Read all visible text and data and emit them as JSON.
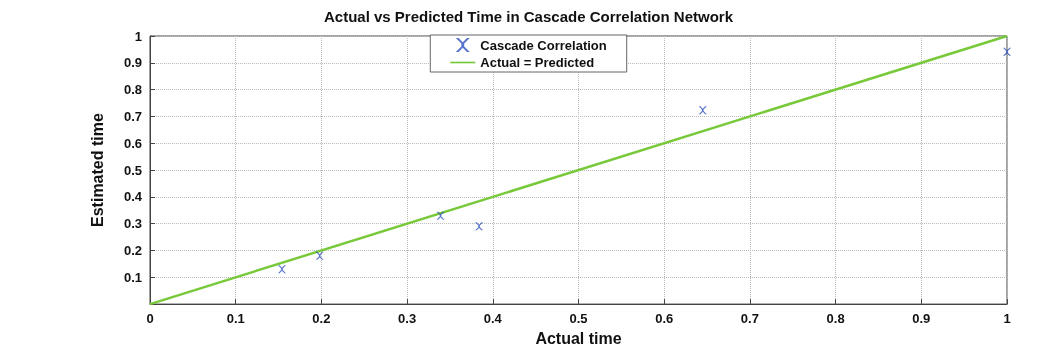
{
  "chart_data": {
    "type": "scatter",
    "title": "Actual vs Predicted Time in Cascade Correlation Network",
    "xlabel": "Actual time",
    "ylabel": "Estimated time",
    "xlim": [
      0,
      1
    ],
    "ylim": [
      0,
      1
    ],
    "xticks": [
      0,
      0.1,
      0.2,
      0.3,
      0.4,
      0.5,
      0.6,
      0.7,
      0.8,
      0.9,
      1
    ],
    "yticks": [
      {
        "value": 0,
        "label": null
      },
      0.1,
      0.2,
      0.3,
      0.4,
      0.5,
      0.6,
      0.7,
      0.8,
      0.9,
      1
    ],
    "grid": true,
    "legend": "top",
    "series": [
      {
        "name": "Cascade Correlation",
        "marker": "cross",
        "color": "#2b4fbf",
        "x": [
          0.154,
          0.198,
          0.339,
          0.384,
          0.645,
          1.0
        ],
        "values": [
          0.13,
          0.18,
          0.33,
          0.29,
          0.723,
          0.941
        ]
      },
      {
        "name": "Actual = Predicted",
        "type": "line",
        "marker": "none",
        "line_style": "solid",
        "color": "#77c93a",
        "x": [
          0,
          1
        ],
        "values": [
          0,
          1
        ]
      }
    ]
  }
}
